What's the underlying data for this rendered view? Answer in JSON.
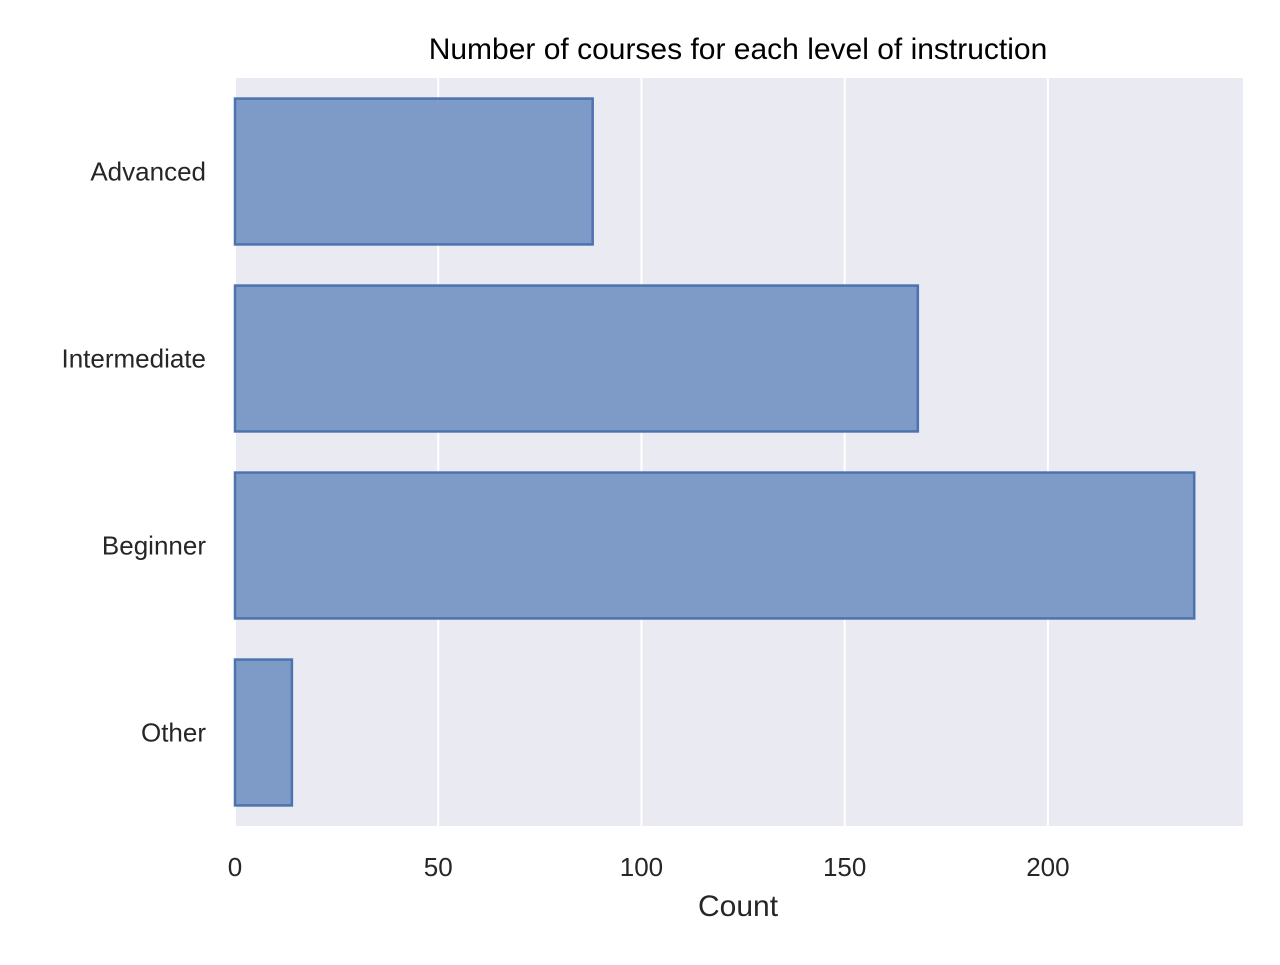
{
  "chart_data": {
    "type": "bar",
    "orientation": "horizontal",
    "title": "Number of courses for each level of instruction",
    "xlabel": "Count",
    "ylabel": "",
    "categories": [
      "Advanced",
      "Intermediate",
      "Beginner",
      "Other"
    ],
    "values": [
      88,
      168,
      236,
      14
    ],
    "xlim": [
      0,
      248
    ],
    "xticks": [
      0,
      50,
      100,
      150,
      200
    ],
    "xtick_labels": [
      "0",
      "50",
      "100",
      "150",
      "200"
    ],
    "grid": true,
    "legend": "none",
    "colors": {
      "bar_fill": "#7896c3",
      "bar_edge": "#4c72b0",
      "plot_background": "#eaeaf2",
      "grid": "#ffffff"
    }
  }
}
